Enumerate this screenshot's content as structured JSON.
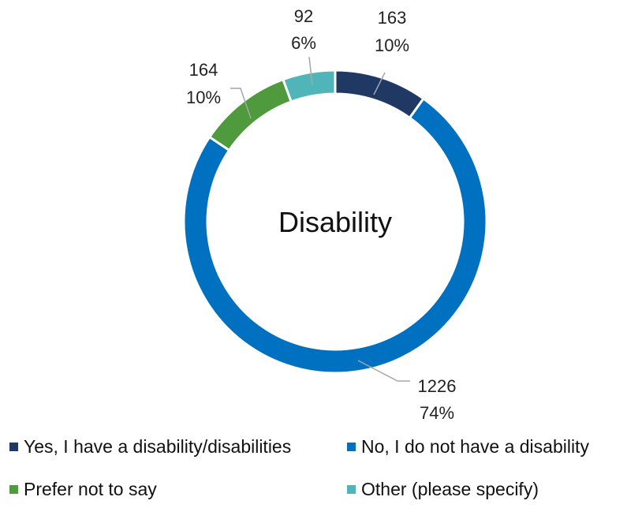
{
  "chart_data": {
    "type": "pie",
    "variant": "donut",
    "center_label": "Disability",
    "categories": [
      "Yes, I have a disability/disabilities",
      "No, I do not have a disability",
      "Prefer not to say",
      "Other (please specify)"
    ],
    "values": [
      163,
      1226,
      164,
      92
    ],
    "percent_labels": [
      "10%",
      "74%",
      "10%",
      "6%"
    ],
    "colors": [
      "#203864",
      "#0070C0",
      "#4E9A3C",
      "#4FB5B8"
    ],
    "legend_position": "bottom"
  }
}
